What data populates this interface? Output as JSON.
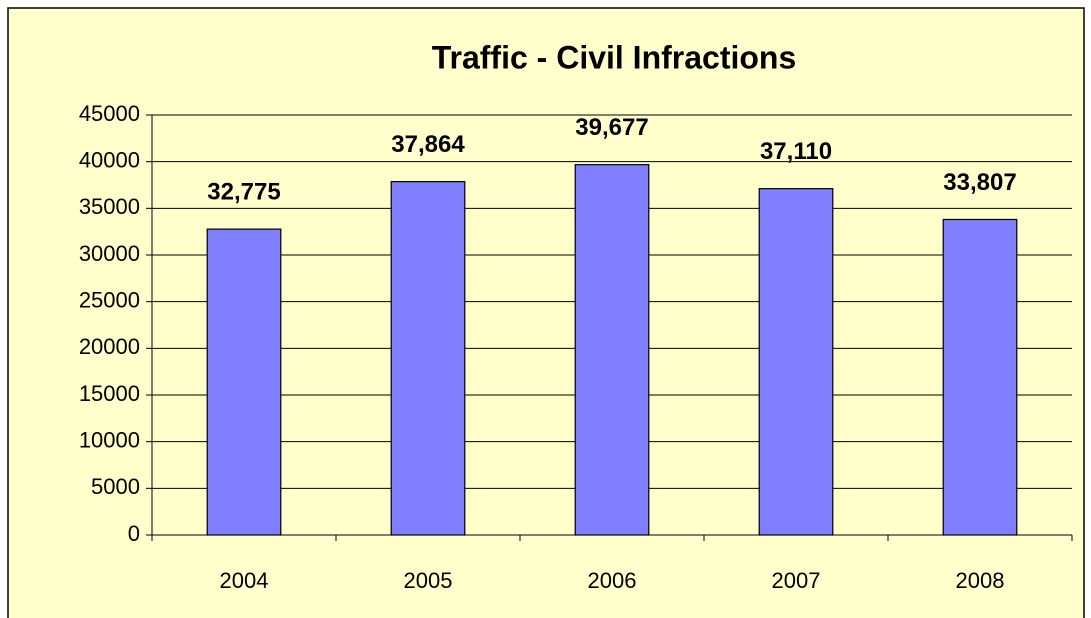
{
  "chart_data": {
    "type": "bar",
    "title": "Traffic - Civil Infractions",
    "categories": [
      "2004",
      "2005",
      "2006",
      "2007",
      "2008"
    ],
    "values": [
      32775,
      37864,
      39677,
      37110,
      33807
    ],
    "value_labels": [
      "32,775",
      "37,864",
      "39,677",
      "37,110",
      "33,807"
    ],
    "color": "#8080ff",
    "ylim": [
      0,
      45000
    ],
    "yticks": [
      0,
      5000,
      10000,
      15000,
      20000,
      25000,
      30000,
      35000,
      40000,
      45000
    ],
    "grid": true
  }
}
